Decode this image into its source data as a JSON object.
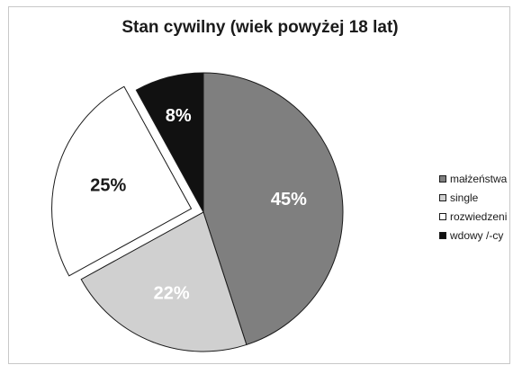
{
  "chart_data": {
    "type": "pie",
    "title": "Stan cywilny (wiek powyżej 18 lat)",
    "categories": [
      "małżeństwa",
      "single",
      "rozwiedzeni",
      "wdowy /-cy"
    ],
    "values": [
      45,
      22,
      25,
      8
    ],
    "value_labels": [
      "45%",
      "22%",
      "25%",
      "8%"
    ],
    "colors": [
      "#7f7f7f",
      "#d0d0d0",
      "#ffffff",
      "#111111"
    ],
    "label_colors": [
      "#ffffff",
      "#ffffff",
      "#1a1a1a",
      "#ffffff"
    ],
    "exploded": [
      false,
      false,
      true,
      false
    ],
    "legend_position": "right",
    "start_angle_deg": 0
  }
}
